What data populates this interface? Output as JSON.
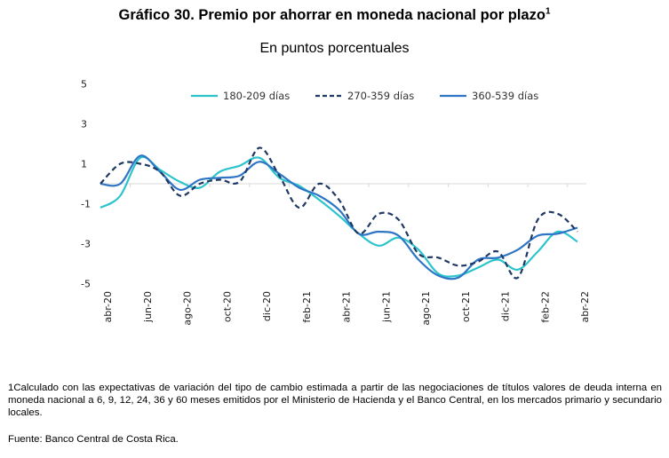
{
  "title": "Gráfico 30. Premio por ahorrar en moneda nacional por plazo",
  "title_superscript": "1",
  "subtitle": "En puntos porcentuales",
  "footnote": "1Calculado con las expectativas de variación del tipo de cambio estimada a partir de las negociaciones de títulos valores de deuda interna en moneda nacional a 6, 9, 12, 24, 36 y 60 meses emitidos por el Ministerio de Hacienda y el Banco Central, en los mercados primario y secundario locales.",
  "source": "Fuente: Banco Central de Costa Rica.",
  "chart_data": {
    "type": "line",
    "title": "Gráfico 30. Premio por ahorrar en moneda nacional por plazo",
    "subtitle": "En puntos porcentuales",
    "xlabel": "",
    "ylabel": "",
    "ylim": [
      -5,
      5
    ],
    "yticks": [
      5,
      3,
      1,
      -1,
      -3,
      -5
    ],
    "ytick_labels": [
      "5",
      "3",
      "1",
      "-1",
      "-3",
      "-5"
    ],
    "grid": false,
    "legend_position": "top",
    "x": [
      "abr-20",
      "may-20",
      "jun-20",
      "jul-20",
      "ago-20",
      "sep-20",
      "oct-20",
      "nov-20",
      "dic-20",
      "ene-21",
      "feb-21",
      "mar-21",
      "abr-21",
      "may-21",
      "jun-21",
      "jul-21",
      "ago-21",
      "sep-21",
      "oct-21",
      "nov-21",
      "dic-21",
      "ene-22",
      "feb-22",
      "mar-22",
      "abr-22"
    ],
    "xtick_labels": [
      "abr-20",
      "jun-20",
      "ago-20",
      "oct-20",
      "dic-20",
      "feb-21",
      "abr-21",
      "jun-21",
      "ago-21",
      "oct-21",
      "dic-21",
      "feb-22",
      "abr-22"
    ],
    "series": [
      {
        "name": "180-209 días",
        "color": "#2CC4CC",
        "dash": "solid",
        "values": [
          -1.2,
          -0.6,
          1.3,
          0.7,
          0.1,
          -0.2,
          0.6,
          0.9,
          1.3,
          0.3,
          -0.1,
          -0.8,
          -1.6,
          -2.5,
          -3.1,
          -2.7,
          -3.3,
          -4.5,
          -4.6,
          -4.2,
          -3.8,
          -4.3,
          -3.4,
          -2.4,
          -2.9
        ]
      },
      {
        "name": "270-359 días",
        "color": "#1F3864",
        "dash": "dashed",
        "values": [
          0.0,
          1.0,
          1.0,
          0.6,
          -0.6,
          0.0,
          0.2,
          0.1,
          1.8,
          0.4,
          -1.2,
          0.0,
          -0.8,
          -2.5,
          -1.5,
          -1.8,
          -3.5,
          -3.7,
          -4.1,
          -3.9,
          -3.4,
          -4.7,
          -1.8,
          -1.5,
          -2.4
        ]
      },
      {
        "name": "360-539 días",
        "color": "#2E75C6",
        "dash": "solid",
        "values": [
          0.0,
          0.0,
          1.4,
          0.6,
          -0.3,
          0.2,
          0.3,
          0.4,
          1.1,
          0.5,
          -0.2,
          -0.6,
          -1.3,
          -2.5,
          -2.4,
          -2.6,
          -3.8,
          -4.6,
          -4.7,
          -3.8,
          -3.7,
          -3.3,
          -2.6,
          -2.5,
          -2.2
        ]
      }
    ]
  }
}
